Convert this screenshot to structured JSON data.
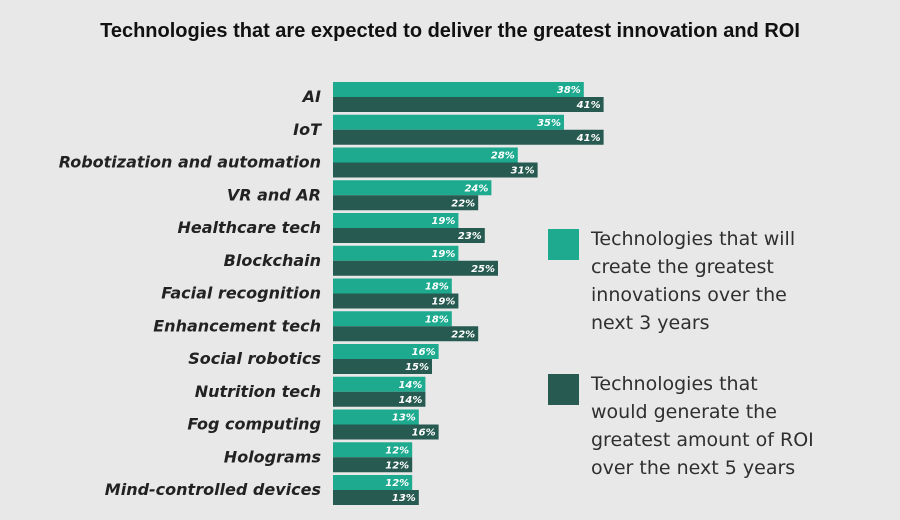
{
  "title": "Technologies that are expected to deliver the greatest innovation and ROI",
  "colors": {
    "series1": "#1daa8f",
    "series2": "#275a50",
    "background": "#e8e8e8"
  },
  "chart_data": {
    "type": "bar",
    "orientation": "horizontal",
    "title": "Technologies that are expected to deliver the greatest innovation and ROI",
    "categories": [
      "AI",
      "IoT",
      "Robotization and automation",
      "VR and AR",
      "Healthcare tech",
      "Blockchain",
      "Facial recognition",
      "Enhancement tech",
      "Social robotics",
      "Nutrition tech",
      "Fog computing",
      "Holograms",
      "Mind-controlled devices"
    ],
    "series": [
      {
        "name": "Technologies that will create the greatest innovations over the next 3 years",
        "values": [
          38,
          35,
          28,
          24,
          19,
          19,
          18,
          18,
          16,
          14,
          13,
          12,
          12
        ]
      },
      {
        "name": "Technologies that would generate the greatest amount of ROI over the next 5 years",
        "values": [
          41,
          41,
          31,
          22,
          23,
          25,
          19,
          22,
          15,
          14,
          16,
          12,
          13
        ]
      }
    ],
    "value_suffix": "%",
    "legend": {
      "position": "right",
      "entries": [
        [
          "Technologies that will",
          "create the greatest",
          "innovations over the",
          "next 3 years"
        ],
        [
          "Technologies that",
          "would generate the",
          "greatest amount of ROI",
          "over the next 5 years"
        ]
      ]
    },
    "grid": false
  }
}
